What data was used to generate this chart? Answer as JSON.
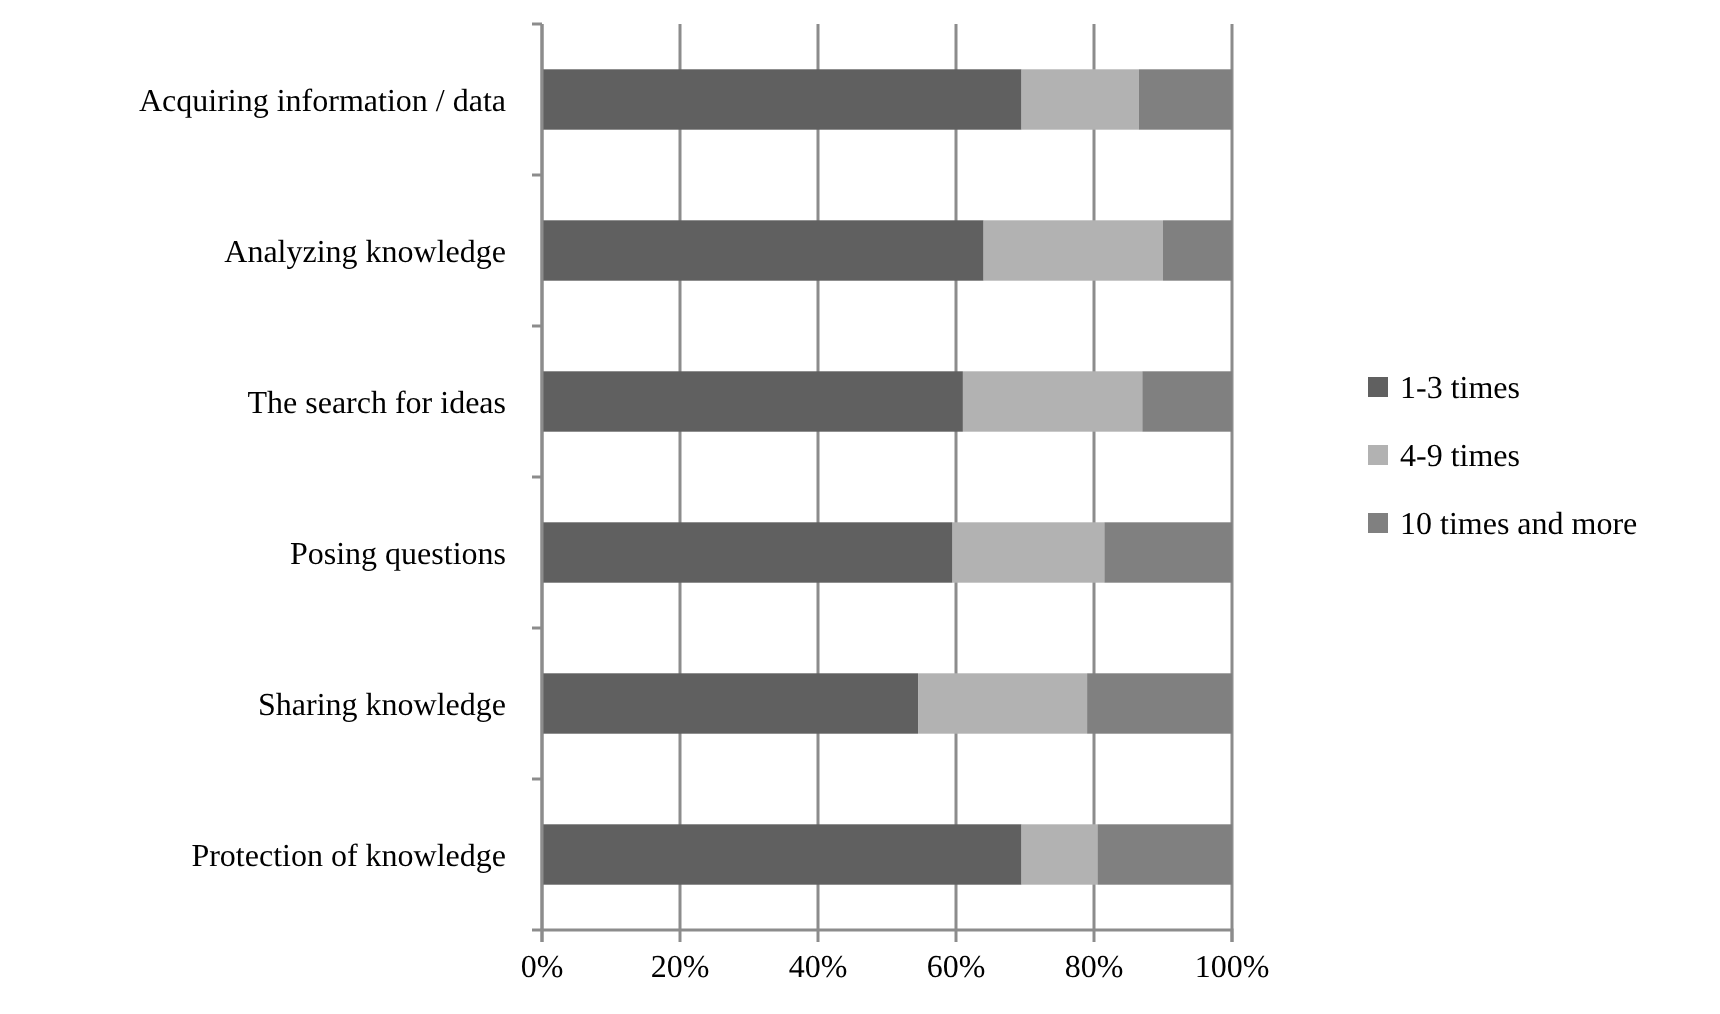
{
  "chart_data": {
    "type": "bar",
    "orientation": "horizontal",
    "stacked": true,
    "categories": [
      "Acquiring information / data",
      "Analyzing knowledge",
      "The search for ideas",
      "Posing questions",
      "Sharing knowledge",
      "Protection of knowledge"
    ],
    "series": [
      {
        "name": "1-3 times",
        "color": "#606060",
        "values": [
          69.5,
          64,
          61,
          59.5,
          54.5,
          69.5
        ]
      },
      {
        "name": "4-9 times",
        "color": "#b2b2b2",
        "values": [
          17,
          26,
          26,
          22,
          24.5,
          11
        ]
      },
      {
        "name": "10 times and more",
        "color": "#808080",
        "values": [
          13.5,
          10,
          13,
          18.5,
          21,
          19.5
        ]
      }
    ],
    "xlim": [
      0,
      100
    ],
    "xticks": [
      {
        "value": 0,
        "label": "0%"
      },
      {
        "value": 20,
        "label": "20%"
      },
      {
        "value": 40,
        "label": "40%"
      },
      {
        "value": 60,
        "label": "60%"
      },
      {
        "value": 80,
        "label": "80%"
      },
      {
        "value": 100,
        "label": "100%"
      }
    ],
    "grid": "x",
    "legend": "right"
  }
}
